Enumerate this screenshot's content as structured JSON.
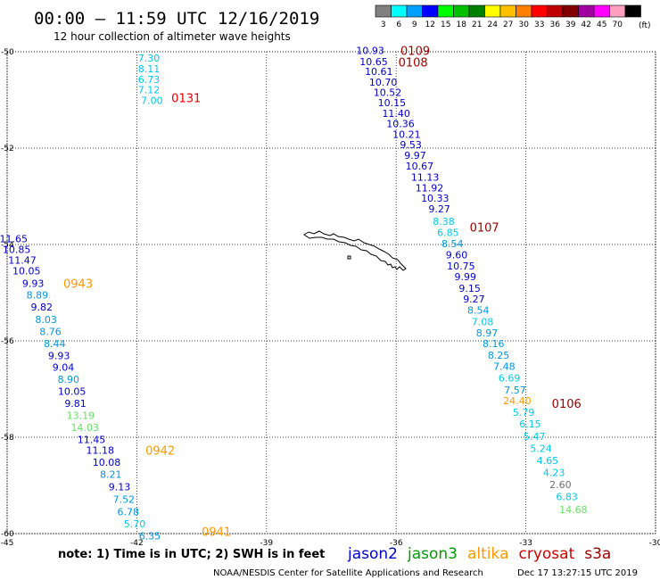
{
  "header": {
    "title": "00:00 – 11:59 UTC 12/16/2019",
    "subtitle": "12 hour collection of altimeter wave heights"
  },
  "legend": {
    "unit": "(ft)",
    "bins": [
      {
        "label": "3",
        "color": "#808080"
      },
      {
        "label": "6",
        "color": "#00ffff"
      },
      {
        "label": "9",
        "color": "#00a0ff"
      },
      {
        "label": "12",
        "color": "#0000ff"
      },
      {
        "label": "15",
        "color": "#00ff00"
      },
      {
        "label": "18",
        "color": "#00c000"
      },
      {
        "label": "21",
        "color": "#008000"
      },
      {
        "label": "24",
        "color": "#ffff00"
      },
      {
        "label": "27",
        "color": "#ffc000"
      },
      {
        "label": "30",
        "color": "#ff8000"
      },
      {
        "label": "33",
        "color": "#ff0000"
      },
      {
        "label": "36",
        "color": "#c00000"
      },
      {
        "label": "39",
        "color": "#800000"
      },
      {
        "label": "42",
        "color": "#a000a0"
      },
      {
        "label": "45",
        "color": "#ff00ff"
      },
      {
        "label": "70",
        "color": "#ffa0c0"
      },
      {
        "label": "",
        "color": "#000000"
      }
    ]
  },
  "footer": {
    "note": "note: 1) Time is in UTC; 2) SWH is in feet",
    "credit": "NOAA/NESDIS Center for Satellite Applications and Research",
    "timestamp": "Dec 17 13:27:15 UTC 2019",
    "satellites": [
      {
        "name": "jason2",
        "color": "#0000cc"
      },
      {
        "name": "jason3",
        "color": "#009900"
      },
      {
        "name": "altika",
        "color": "#ff9900"
      },
      {
        "name": "cryosat",
        "color": "#cc0000"
      },
      {
        "name": "s3a",
        "color": "#990000"
      }
    ]
  },
  "colors": {
    "grey": "#707070",
    "cyan": "#00c8e6",
    "blue_light": "#0096dc",
    "blue": "#0000c8",
    "green_light": "#66e066",
    "orange": "#ff9900",
    "red": "#ee0000",
    "darkred": "#990000"
  },
  "chart_data": {
    "type": "scatter",
    "xlabel": "",
    "ylabel": "",
    "xlim": [
      -45,
      -30
    ],
    "ylim": [
      -60,
      -50
    ],
    "x_ticks": [
      -45,
      -42,
      -39,
      -36,
      -33,
      -30
    ],
    "x_tick_labels": [
      "-45",
      "-42",
      "-39",
      "-36",
      "-33",
      "-30"
    ],
    "y_ticks": [
      -50,
      -52,
      -54,
      -56,
      -58,
      -60
    ],
    "y_tick_labels": [
      "-50",
      "-52",
      "-54",
      "-56",
      "-58",
      "-60"
    ],
    "grid": true,
    "time_labels": [
      {
        "text": "0109",
        "lon": -35.9,
        "lat": -49.97,
        "color": "darkred"
      },
      {
        "text": "0108",
        "lon": -35.95,
        "lat": -50.21,
        "color": "darkred"
      },
      {
        "text": "0131",
        "lon": -41.2,
        "lat": -50.95,
        "color": "red"
      },
      {
        "text": "0107",
        "lon": -34.3,
        "lat": -53.64,
        "color": "darkred"
      },
      {
        "text": "0943",
        "lon": -43.7,
        "lat": -54.81,
        "color": "orange"
      },
      {
        "text": "0106",
        "lon": -32.4,
        "lat": -57.3,
        "color": "darkred"
      },
      {
        "text": "0942",
        "lon": -41.8,
        "lat": -58.27,
        "color": "orange"
      },
      {
        "text": "0941",
        "lon": -40.5,
        "lat": -59.95,
        "color": "orange"
      }
    ],
    "series": [
      {
        "name": "0131",
        "points": [
          {
            "lon": -41.72,
            "lat": -50.13,
            "value": "7.30",
            "color": "cyan"
          },
          {
            "lon": -41.72,
            "lat": -50.35,
            "value": "8.11",
            "color": "cyan"
          },
          {
            "lon": -41.72,
            "lat": -50.57,
            "value": "6.73",
            "color": "cyan"
          },
          {
            "lon": -41.72,
            "lat": -50.79,
            "value": "7.12",
            "color": "cyan"
          },
          {
            "lon": -41.65,
            "lat": -51.01,
            "value": "7.00",
            "color": "cyan"
          }
        ]
      },
      {
        "name": "0109",
        "points": [
          {
            "lon": -36.6,
            "lat": -49.97,
            "value": "10.93",
            "color": "blue"
          },
          {
            "lon": -36.52,
            "lat": -50.2,
            "value": "10.65",
            "color": "blue"
          },
          {
            "lon": -36.4,
            "lat": -50.41,
            "value": "10.61",
            "color": "blue"
          },
          {
            "lon": -36.3,
            "lat": -50.63,
            "value": "10.70",
            "color": "blue"
          },
          {
            "lon": -36.2,
            "lat": -50.84,
            "value": "10.52",
            "color": "blue"
          },
          {
            "lon": -36.1,
            "lat": -51.06,
            "value": "10.15",
            "color": "blue"
          },
          {
            "lon": -36.0,
            "lat": -51.28,
            "value": "11.40",
            "color": "blue"
          },
          {
            "lon": -35.9,
            "lat": -51.49,
            "value": "10.36",
            "color": "blue"
          },
          {
            "lon": -35.76,
            "lat": -51.71,
            "value": "10.21",
            "color": "blue"
          },
          {
            "lon": -35.66,
            "lat": -51.93,
            "value": "9.53",
            "color": "blue"
          },
          {
            "lon": -35.56,
            "lat": -52.15,
            "value": "9.97",
            "color": "blue"
          },
          {
            "lon": -35.46,
            "lat": -52.37,
            "value": "10.67",
            "color": "blue"
          },
          {
            "lon": -35.33,
            "lat": -52.6,
            "value": "11.13",
            "color": "blue"
          },
          {
            "lon": -35.23,
            "lat": -52.82,
            "value": "11.92",
            "color": "blue"
          },
          {
            "lon": -35.1,
            "lat": -53.04,
            "value": "10.33",
            "color": "blue"
          },
          {
            "lon": -35.0,
            "lat": -53.26,
            "value": "9.27",
            "color": "blue"
          },
          {
            "lon": -34.9,
            "lat": -53.52,
            "value": "8.38",
            "color": "cyan"
          },
          {
            "lon": -34.8,
            "lat": -53.75,
            "value": "6.85",
            "color": "cyan"
          },
          {
            "lon": -34.7,
            "lat": -53.98,
            "value": "8.54",
            "color": "blue_light"
          },
          {
            "lon": -34.6,
            "lat": -54.21,
            "value": "9.60",
            "color": "blue"
          },
          {
            "lon": -34.5,
            "lat": -54.44,
            "value": "10.75",
            "color": "blue"
          },
          {
            "lon": -34.4,
            "lat": -54.67,
            "value": "9.99",
            "color": "blue"
          },
          {
            "lon": -34.3,
            "lat": -54.91,
            "value": "9.15",
            "color": "blue"
          },
          {
            "lon": -34.2,
            "lat": -55.13,
            "value": "9.27",
            "color": "blue"
          },
          {
            "lon": -34.1,
            "lat": -55.36,
            "value": "8.54",
            "color": "blue_light"
          },
          {
            "lon": -34.0,
            "lat": -55.6,
            "value": "7.08",
            "color": "cyan"
          },
          {
            "lon": -33.9,
            "lat": -55.83,
            "value": "8.97",
            "color": "blue_light"
          },
          {
            "lon": -33.75,
            "lat": -56.06,
            "value": "8.16",
            "color": "blue_light"
          },
          {
            "lon": -33.63,
            "lat": -56.3,
            "value": "8.25",
            "color": "blue_light"
          },
          {
            "lon": -33.5,
            "lat": -56.53,
            "value": "7.48",
            "color": "blue_light"
          },
          {
            "lon": -33.38,
            "lat": -56.77,
            "value": "6.69",
            "color": "cyan"
          },
          {
            "lon": -33.25,
            "lat": -57.02,
            "value": "7.57",
            "color": "blue_light"
          },
          {
            "lon": -33.2,
            "lat": -57.24,
            "value": "24.40",
            "color": "orange"
          },
          {
            "lon": -33.05,
            "lat": -57.48,
            "value": "5.79",
            "color": "cyan"
          },
          {
            "lon": -32.9,
            "lat": -57.72,
            "value": "6.15",
            "color": "cyan"
          },
          {
            "lon": -32.8,
            "lat": -57.98,
            "value": "5.47",
            "color": "cyan"
          },
          {
            "lon": -32.65,
            "lat": -58.23,
            "value": "5.24",
            "color": "cyan"
          },
          {
            "lon": -32.5,
            "lat": -58.48,
            "value": "4.65",
            "color": "cyan"
          },
          {
            "lon": -32.35,
            "lat": -58.73,
            "value": "4.23",
            "color": "cyan"
          },
          {
            "lon": -32.2,
            "lat": -58.98,
            "value": "2.60",
            "color": "grey"
          },
          {
            "lon": -32.05,
            "lat": -59.23,
            "value": "6.83",
            "color": "cyan"
          },
          {
            "lon": -31.9,
            "lat": -59.5,
            "value": "14.68",
            "color": "green_light"
          }
        ]
      },
      {
        "name": "0943",
        "points": [
          {
            "lon": -44.85,
            "lat": -53.88,
            "value": "11.65",
            "color": "blue"
          },
          {
            "lon": -44.78,
            "lat": -54.1,
            "value": "10.85",
            "color": "blue"
          },
          {
            "lon": -44.65,
            "lat": -54.32,
            "value": "11.47",
            "color": "blue"
          },
          {
            "lon": -44.55,
            "lat": -54.55,
            "value": "10.05",
            "color": "blue"
          },
          {
            "lon": -44.4,
            "lat": -54.81,
            "value": "9.93",
            "color": "blue"
          },
          {
            "lon": -44.3,
            "lat": -55.05,
            "value": "8.89",
            "color": "blue_light"
          },
          {
            "lon": -44.2,
            "lat": -55.3,
            "value": "9.82",
            "color": "blue"
          },
          {
            "lon": -44.1,
            "lat": -55.56,
            "value": "8.03",
            "color": "blue_light"
          },
          {
            "lon": -44.0,
            "lat": -55.81,
            "value": "8.76",
            "color": "blue_light"
          },
          {
            "lon": -43.9,
            "lat": -56.06,
            "value": "8.44",
            "color": "blue_light"
          },
          {
            "lon": -43.8,
            "lat": -56.31,
            "value": "9.93",
            "color": "blue"
          },
          {
            "lon": -43.7,
            "lat": -56.55,
            "value": "9.04",
            "color": "blue"
          },
          {
            "lon": -43.58,
            "lat": -56.8,
            "value": "8.90",
            "color": "blue_light"
          },
          {
            "lon": -43.5,
            "lat": -57.05,
            "value": "10.05",
            "color": "blue"
          },
          {
            "lon": -43.42,
            "lat": -57.3,
            "value": "9.81",
            "color": "blue"
          },
          {
            "lon": -43.3,
            "lat": -57.55,
            "value": "13.19",
            "color": "green_light"
          },
          {
            "lon": -43.2,
            "lat": -57.8,
            "value": "14.03",
            "color": "green_light"
          },
          {
            "lon": -43.05,
            "lat": -58.05,
            "value": "11.45",
            "color": "blue"
          },
          {
            "lon": -42.85,
            "lat": -58.27,
            "value": "11.18",
            "color": "blue"
          },
          {
            "lon": -42.7,
            "lat": -58.52,
            "value": "10.08",
            "color": "blue"
          },
          {
            "lon": -42.6,
            "lat": -58.77,
            "value": "8.21",
            "color": "blue_light"
          },
          {
            "lon": -42.4,
            "lat": -59.03,
            "value": "9.13",
            "color": "blue"
          },
          {
            "lon": -42.3,
            "lat": -59.29,
            "value": "7.52",
            "color": "blue_light"
          },
          {
            "lon": -42.2,
            "lat": -59.55,
            "value": "6.78",
            "color": "blue_light"
          },
          {
            "lon": -42.05,
            "lat": -59.8,
            "value": "5.70",
            "color": "cyan"
          },
          {
            "lon": -41.7,
            "lat": -60.05,
            "value": "6.35",
            "color": "blue_light"
          }
        ]
      }
    ]
  }
}
